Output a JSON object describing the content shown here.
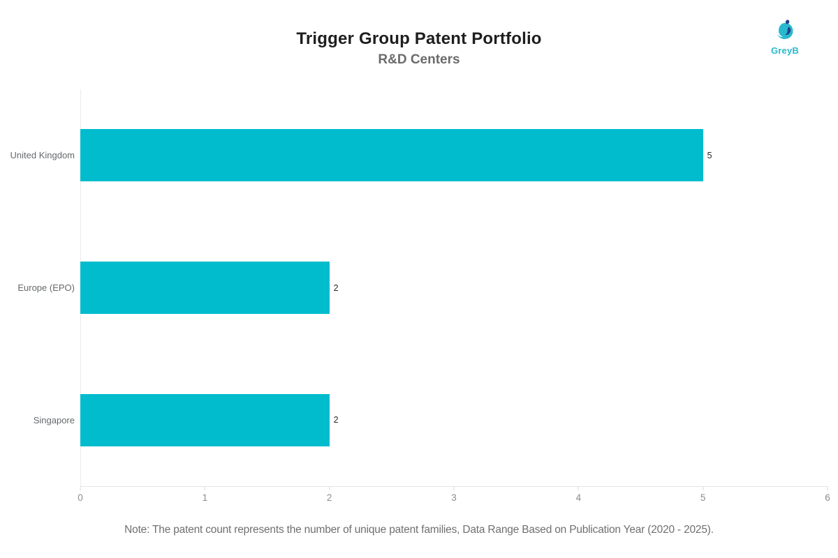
{
  "header": {
    "title": "Trigger Group Patent Portfolio",
    "subtitle": "R&D Centers",
    "logo_text": "GreyB"
  },
  "chart_data": {
    "type": "bar",
    "orientation": "horizontal",
    "title": "Trigger Group Patent Portfolio",
    "subtitle": "R&D Centers",
    "categories": [
      "United Kingdom",
      "Europe (EPO)",
      "Singapore"
    ],
    "values": [
      5,
      2,
      2
    ],
    "value_labels": [
      "5",
      "2",
      "2"
    ],
    "xlim": [
      0,
      6
    ],
    "x_ticks": [
      "0",
      "1",
      "2",
      "3",
      "4",
      "5",
      "6"
    ],
    "xlabel": "",
    "ylabel": "",
    "grid": false,
    "legend": "none"
  },
  "footer": {
    "note": "Note: The patent count represents the number of unique patent families, Data Range Based on Publication Year (2020 - 2025)."
  },
  "colors": {
    "bar": "#00bccd",
    "title": "#1e1e1e",
    "subtitle": "#6b6b6b",
    "category_label": "#65696c",
    "value_label": "#2b2b2b",
    "axis_tick_label": "#8b8b8b",
    "axis_line": "#e3e3e3",
    "logo_cyan": "#29b9ce",
    "logo_navy": "#24418e"
  }
}
